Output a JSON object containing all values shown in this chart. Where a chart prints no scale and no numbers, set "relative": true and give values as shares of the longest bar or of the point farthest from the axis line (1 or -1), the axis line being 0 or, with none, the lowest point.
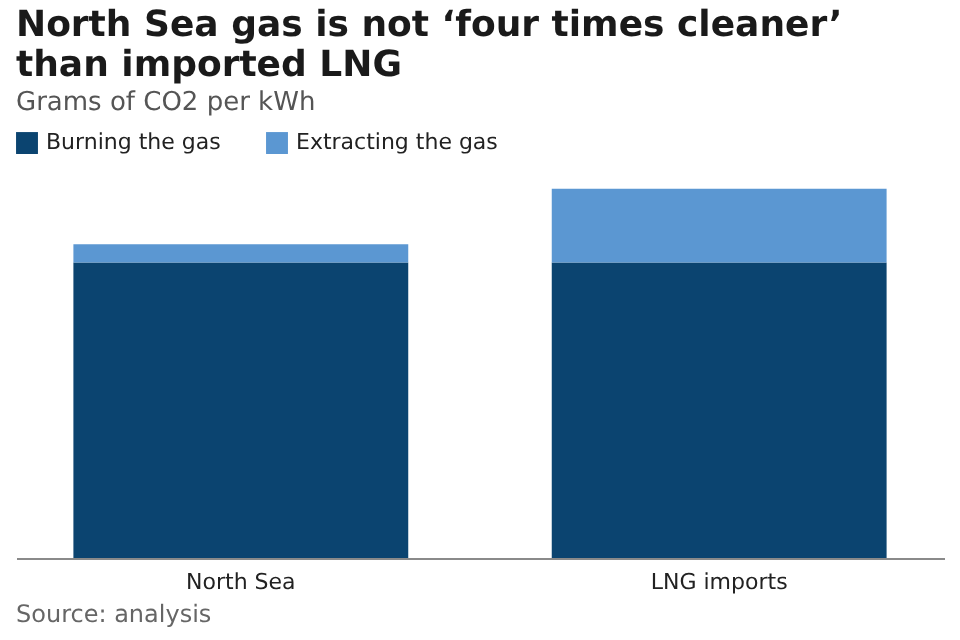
{
  "chart_data": {
    "type": "bar",
    "title": "North Sea gas is not ‘four times cleaner’ than imported LNG",
    "subtitle": "Grams of CO2 per kWh",
    "categories": [
      "North Sea",
      "LNG imports"
    ],
    "series": [
      {
        "name": "Burning the gas",
        "color": "#0b4470",
        "values": [
          0.8,
          0.8
        ]
      },
      {
        "name": "Extracting the gas",
        "color": "#5b97d2",
        "values": [
          0.05,
          0.2
        ]
      }
    ],
    "stacked": true,
    "relative": true,
    "legend": "top left",
    "annotations": [
      "Source: analysis"
    ]
  }
}
